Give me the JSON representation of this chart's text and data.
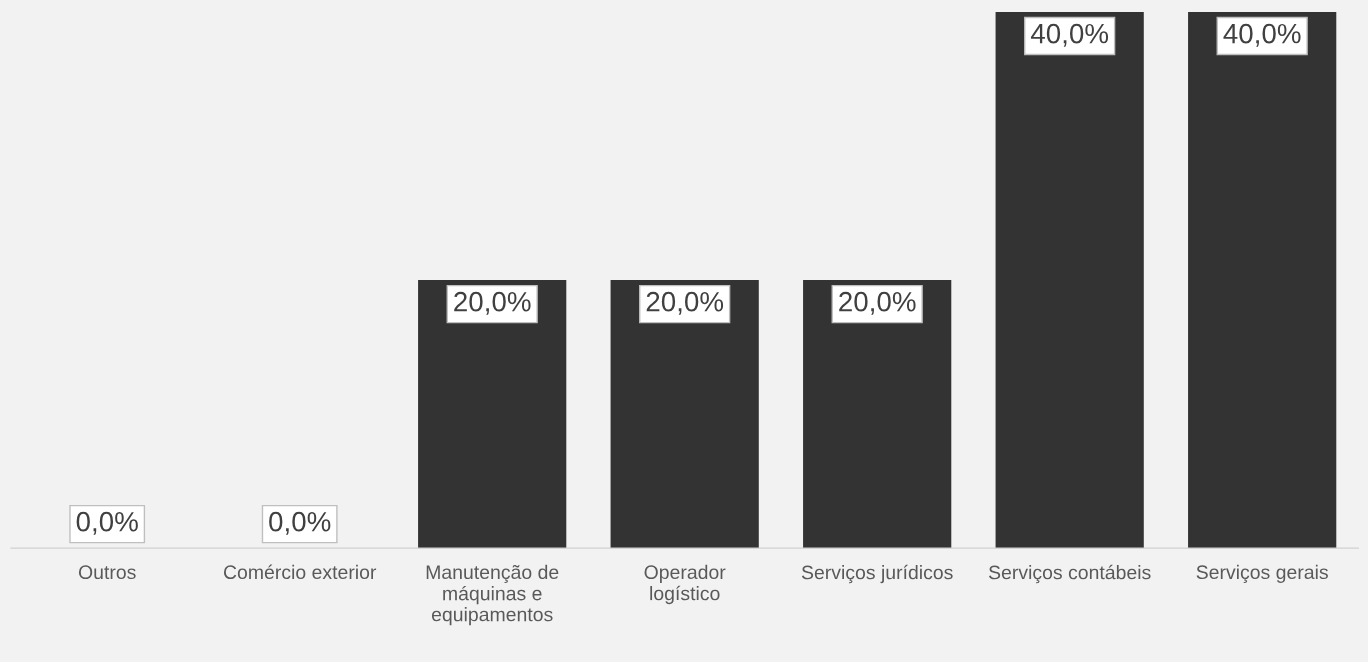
{
  "chart_data": {
    "type": "bar",
    "categories": [
      "Outros",
      "Comércio exterior",
      "Manutenção de\nmáquinas e\nequipamentos",
      "Operador\nlogístico",
      "Serviços jurídicos",
      "Serviços contábeis",
      "Serviços gerais"
    ],
    "values": [
      0,
      0,
      20,
      20,
      20,
      40,
      40
    ],
    "value_labels": [
      "0,0%",
      "0,0%",
      "20,0%",
      "20,0%",
      "20,0%",
      "40,0%",
      "40,0%"
    ],
    "color": "#333333",
    "grid": false,
    "legend": false
  }
}
